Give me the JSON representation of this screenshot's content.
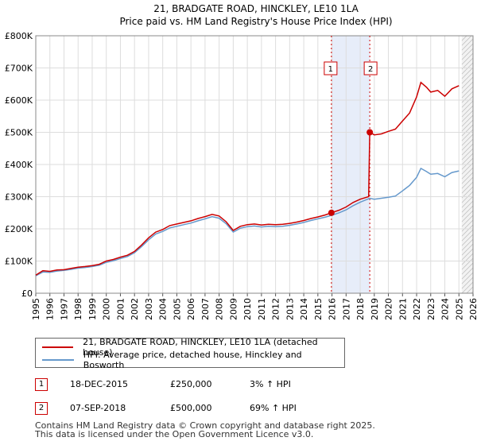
{
  "chart_data": {
    "type": "line",
    "title": "21, BRADGATE ROAD, HINCKLEY, LE10 1LA",
    "subtitle": "Price paid vs. HM Land Registry's House Price Index (HPI)",
    "xlim": [
      1995,
      2026
    ],
    "ylim": [
      0,
      800000
    ],
    "y_ticks": [
      {
        "value": 0,
        "label": "£0"
      },
      {
        "value": 100000,
        "label": "£100K"
      },
      {
        "value": 200000,
        "label": "£200K"
      },
      {
        "value": 300000,
        "label": "£300K"
      },
      {
        "value": 400000,
        "label": "£400K"
      },
      {
        "value": 500000,
        "label": "£500K"
      },
      {
        "value": 600000,
        "label": "£600K"
      },
      {
        "value": 700000,
        "label": "£700K"
      },
      {
        "value": 800000,
        "label": "£800K"
      }
    ],
    "x_ticks": [
      "1995",
      "1996",
      "1997",
      "1998",
      "1999",
      "2000",
      "2001",
      "2002",
      "2003",
      "2004",
      "2005",
      "2006",
      "2007",
      "2008",
      "2009",
      "2010",
      "2011",
      "2012",
      "2013",
      "2014",
      "2015",
      "2016",
      "2017",
      "2018",
      "2019",
      "2020",
      "2021",
      "2022",
      "2023",
      "2024",
      "2025",
      "2026"
    ],
    "grid": true,
    "legend_placement": "bottom",
    "projection_start": 2025.2,
    "highlight_ranges": [
      [
        2015.96,
        2018.68
      ]
    ],
    "series": [
      {
        "name": "21, BRADGATE ROAD, HINCKLEY, LE10 1LA (detached house)",
        "color": "#cc0000",
        "points": [
          [
            1995.0,
            56000
          ],
          [
            1995.5,
            70000
          ],
          [
            1996.0,
            68000
          ],
          [
            1996.5,
            72000
          ],
          [
            1997.0,
            73000
          ],
          [
            1997.5,
            77000
          ],
          [
            1998.0,
            81000
          ],
          [
            1998.5,
            83000
          ],
          [
            1999.0,
            86000
          ],
          [
            1999.5,
            90000
          ],
          [
            2000.0,
            100000
          ],
          [
            2000.5,
            105000
          ],
          [
            2001.0,
            112000
          ],
          [
            2001.5,
            118000
          ],
          [
            2002.0,
            130000
          ],
          [
            2002.5,
            150000
          ],
          [
            2003.0,
            172000
          ],
          [
            2003.5,
            190000
          ],
          [
            2004.0,
            198000
          ],
          [
            2004.5,
            210000
          ],
          [
            2005.0,
            215000
          ],
          [
            2005.5,
            220000
          ],
          [
            2006.0,
            225000
          ],
          [
            2006.5,
            232000
          ],
          [
            2007.0,
            238000
          ],
          [
            2007.5,
            245000
          ],
          [
            2008.0,
            240000
          ],
          [
            2008.5,
            222000
          ],
          [
            2009.0,
            195000
          ],
          [
            2009.5,
            208000
          ],
          [
            2010.0,
            213000
          ],
          [
            2010.5,
            215000
          ],
          [
            2011.0,
            212000
          ],
          [
            2011.5,
            214000
          ],
          [
            2012.0,
            213000
          ],
          [
            2012.5,
            214000
          ],
          [
            2013.0,
            217000
          ],
          [
            2013.5,
            221000
          ],
          [
            2014.0,
            226000
          ],
          [
            2014.5,
            232000
          ],
          [
            2015.0,
            237000
          ],
          [
            2015.5,
            243000
          ],
          [
            2015.96,
            250000
          ],
          [
            2016.5,
            258000
          ],
          [
            2017.0,
            268000
          ],
          [
            2017.5,
            282000
          ],
          [
            2018.0,
            292000
          ],
          [
            2018.6,
            300000
          ],
          [
            2018.68,
            500000
          ],
          [
            2019.0,
            492000
          ],
          [
            2019.5,
            495000
          ],
          [
            2020.0,
            503000
          ],
          [
            2020.5,
            510000
          ],
          [
            2021.0,
            535000
          ],
          [
            2021.5,
            560000
          ],
          [
            2022.0,
            610000
          ],
          [
            2022.3,
            655000
          ],
          [
            2022.7,
            640000
          ],
          [
            2023.0,
            625000
          ],
          [
            2023.5,
            630000
          ],
          [
            2024.0,
            612000
          ],
          [
            2024.5,
            635000
          ],
          [
            2025.0,
            645000
          ]
        ]
      },
      {
        "name": "HPI: Average price, detached house, Hinckley and Bosworth",
        "color": "#6699cc",
        "points": [
          [
            1995.0,
            54000
          ],
          [
            1995.5,
            66000
          ],
          [
            1996.0,
            65000
          ],
          [
            1996.5,
            69000
          ],
          [
            1997.0,
            71000
          ],
          [
            1997.5,
            74000
          ],
          [
            1998.0,
            78000
          ],
          [
            1998.5,
            80000
          ],
          [
            1999.0,
            83000
          ],
          [
            1999.5,
            87000
          ],
          [
            2000.0,
            96000
          ],
          [
            2000.5,
            101000
          ],
          [
            2001.0,
            108000
          ],
          [
            2001.5,
            114000
          ],
          [
            2002.0,
            126000
          ],
          [
            2002.5,
            145000
          ],
          [
            2003.0,
            166000
          ],
          [
            2003.5,
            184000
          ],
          [
            2004.0,
            192000
          ],
          [
            2004.5,
            203000
          ],
          [
            2005.0,
            208000
          ],
          [
            2005.5,
            213000
          ],
          [
            2006.0,
            218000
          ],
          [
            2006.5,
            225000
          ],
          [
            2007.0,
            231000
          ],
          [
            2007.5,
            238000
          ],
          [
            2008.0,
            233000
          ],
          [
            2008.5,
            216000
          ],
          [
            2009.0,
            190000
          ],
          [
            2009.5,
            202000
          ],
          [
            2010.0,
            207000
          ],
          [
            2010.5,
            209000
          ],
          [
            2011.0,
            206000
          ],
          [
            2011.5,
            208000
          ],
          [
            2012.0,
            207000
          ],
          [
            2012.5,
            208000
          ],
          [
            2013.0,
            211000
          ],
          [
            2013.5,
            215000
          ],
          [
            2014.0,
            220000
          ],
          [
            2014.5,
            226000
          ],
          [
            2015.0,
            231000
          ],
          [
            2015.5,
            236000
          ],
          [
            2015.96,
            242000
          ],
          [
            2016.5,
            250000
          ],
          [
            2017.0,
            259000
          ],
          [
            2017.5,
            272000
          ],
          [
            2018.0,
            283000
          ],
          [
            2018.68,
            295000
          ],
          [
            2019.0,
            292000
          ],
          [
            2019.5,
            295000
          ],
          [
            2020.0,
            298000
          ],
          [
            2020.5,
            302000
          ],
          [
            2021.0,
            318000
          ],
          [
            2021.5,
            335000
          ],
          [
            2022.0,
            360000
          ],
          [
            2022.3,
            388000
          ],
          [
            2022.7,
            378000
          ],
          [
            2023.0,
            370000
          ],
          [
            2023.5,
            372000
          ],
          [
            2024.0,
            362000
          ],
          [
            2024.5,
            375000
          ],
          [
            2025.0,
            380000
          ]
        ]
      }
    ],
    "transactions": [
      {
        "label": "1",
        "x": 2015.96,
        "y": 250000
      },
      {
        "label": "2",
        "x": 2018.68,
        "y": 500000
      }
    ]
  },
  "legend": {
    "property_label": "21, BRADGATE ROAD, HINCKLEY, LE10 1LA (detached house)",
    "hpi_label": "HPI: Average price, detached house, Hinckley and Bosworth"
  },
  "transactions_table": [
    {
      "num": "1",
      "date": "18-DEC-2015",
      "price": "£250,000",
      "hpi": "3% ↑ HPI"
    },
    {
      "num": "2",
      "date": "07-SEP-2018",
      "price": "£500,000",
      "hpi": "69% ↑ HPI"
    }
  ],
  "footer": {
    "line1": "Contains HM Land Registry data © Crown copyright and database right 2025.",
    "line2": "This data is licensed under the Open Government Licence v3.0."
  }
}
